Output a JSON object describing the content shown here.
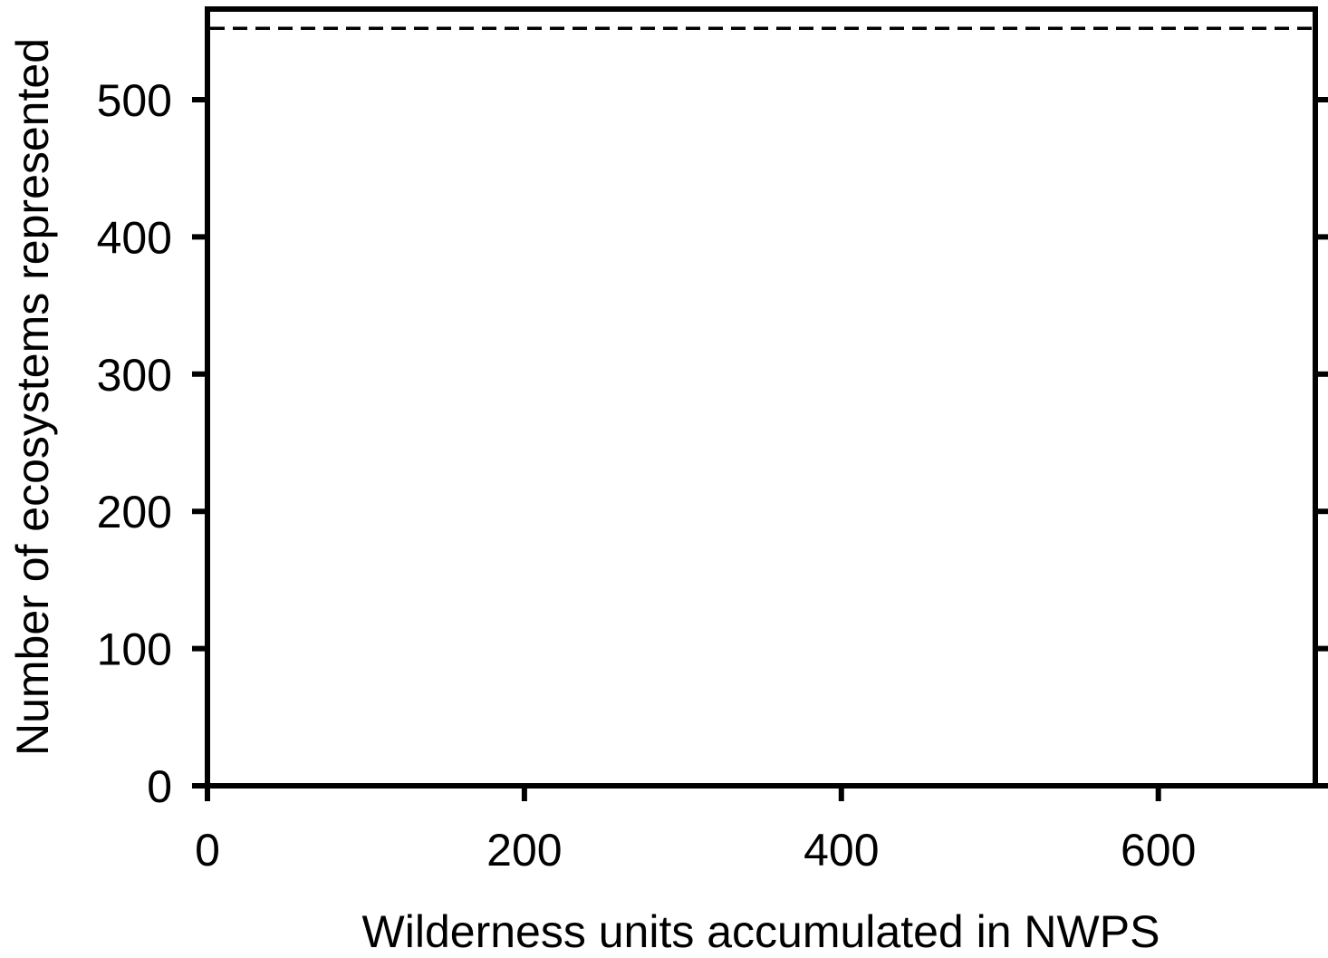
{
  "chart_data": {
    "type": "line",
    "title": "",
    "xlabel": "Wilderness units accumulated in NWPS",
    "ylabel": "Number of ecosystems represented",
    "xlim": [
      0,
      700
    ],
    "ylim": [
      0,
      560
    ],
    "x_ticks": [
      0,
      200,
      400,
      600
    ],
    "x_tick_labels": [
      "0",
      "200",
      "400",
      "600"
    ],
    "y_ticks": [
      0,
      100,
      200,
      300,
      400,
      500
    ],
    "y_tick_labels": [
      "0",
      "100",
      "200",
      "300",
      "400",
      "500"
    ],
    "reference_lines": [
      {
        "axis": "y",
        "value": 552,
        "style": "dashed",
        "color": "#000000"
      }
    ],
    "series": [],
    "grid": false,
    "legend": "none"
  }
}
